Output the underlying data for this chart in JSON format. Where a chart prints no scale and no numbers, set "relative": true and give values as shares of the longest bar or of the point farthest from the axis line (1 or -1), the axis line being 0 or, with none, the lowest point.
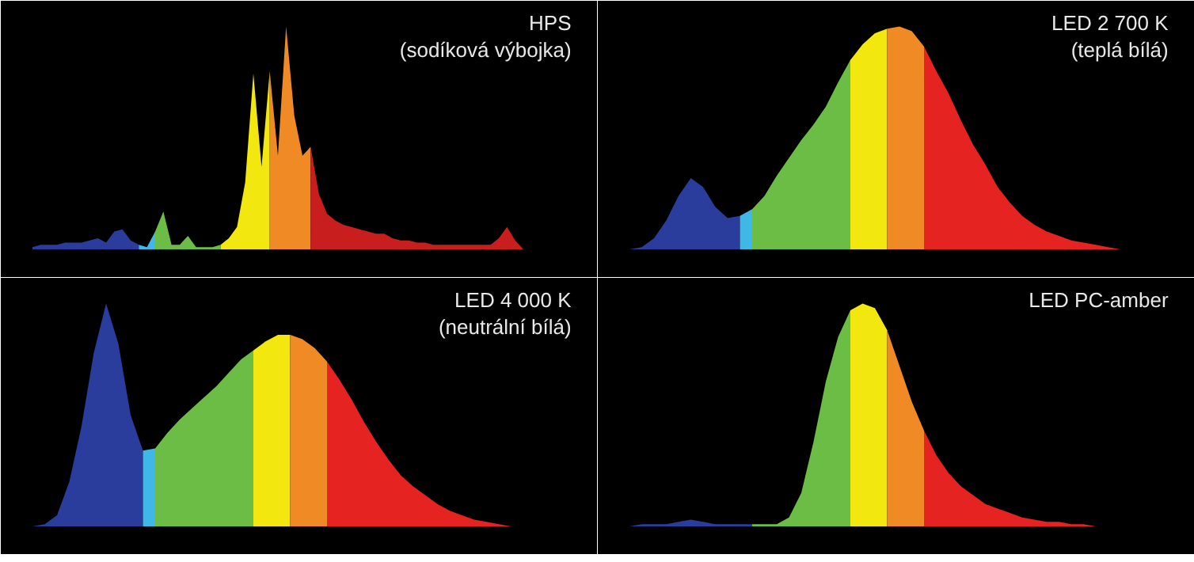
{
  "chart_data": [
    {
      "type": "area",
      "title": "HPS",
      "subtitle": "(sodíková výbojka)",
      "relative": true,
      "categories": [
        null,
        null,
        null,
        null,
        null,
        null,
        null,
        null,
        null,
        null,
        null,
        null,
        null,
        null,
        null,
        null,
        null,
        null,
        null,
        null,
        null,
        null,
        null,
        null,
        null,
        null,
        null,
        null,
        null,
        null,
        null,
        null,
        null,
        null,
        null,
        null,
        null,
        null,
        null,
        null,
        null,
        null,
        null,
        null,
        null,
        null,
        null,
        null,
        null,
        null,
        null,
        null,
        null,
        null,
        null,
        null,
        null,
        null,
        null,
        null,
        null
      ],
      "series": [
        {
          "color": "#2a3c9c",
          "values": [
            0.01,
            0.02,
            0.02,
            0.02,
            0.03,
            0.03,
            0.03,
            0.04,
            0.05,
            0.03,
            0.08,
            0.09,
            0.04,
            0.02,
            null,
            null,
            null,
            null,
            null,
            null,
            null,
            null,
            null,
            null,
            null,
            null,
            null,
            null,
            null,
            null,
            null,
            null,
            null,
            null,
            null,
            null,
            null,
            null,
            null,
            null,
            null,
            null,
            null,
            null,
            null,
            null,
            null,
            null,
            null,
            null,
            null,
            null,
            null,
            null,
            null,
            null,
            null,
            null,
            null,
            null,
            null
          ]
        },
        {
          "color": "#3fb8e8",
          "values": [
            null,
            null,
            null,
            null,
            null,
            null,
            null,
            null,
            null,
            null,
            null,
            null,
            null,
            0.02,
            0.01,
            0.08,
            null,
            null,
            null,
            null,
            null,
            null,
            null,
            null,
            null,
            null,
            null,
            null,
            null,
            null,
            null,
            null,
            null,
            null,
            null,
            null,
            null,
            null,
            null,
            null,
            null,
            null,
            null,
            null,
            null,
            null,
            null,
            null,
            null,
            null,
            null,
            null,
            null,
            null,
            null,
            null,
            null,
            null,
            null,
            null,
            null
          ]
        },
        {
          "color": "#6cbd45",
          "values": [
            null,
            null,
            null,
            null,
            null,
            null,
            null,
            null,
            null,
            null,
            null,
            null,
            null,
            null,
            null,
            0.08,
            0.17,
            0.02,
            0.02,
            0.06,
            0.01,
            0.01,
            0.01,
            0.02,
            null,
            null,
            null,
            null,
            null,
            null,
            null,
            null,
            null,
            null,
            null,
            null,
            null,
            null,
            null,
            null,
            null,
            null,
            null,
            null,
            null,
            null,
            null,
            null,
            null,
            null,
            null,
            null,
            null,
            null,
            null,
            null,
            null,
            null,
            null,
            null,
            null
          ]
        },
        {
          "color": "#f2e70f",
          "values": [
            null,
            null,
            null,
            null,
            null,
            null,
            null,
            null,
            null,
            null,
            null,
            null,
            null,
            null,
            null,
            null,
            null,
            null,
            null,
            null,
            null,
            null,
            null,
            0.02,
            0.05,
            0.1,
            0.3,
            0.79,
            0.37,
            0.8,
            null,
            null,
            null,
            null,
            null,
            null,
            null,
            null,
            null,
            null,
            null,
            null,
            null,
            null,
            null,
            null,
            null,
            null,
            null,
            null,
            null,
            null,
            null,
            null,
            null,
            null,
            null,
            null,
            null,
            null,
            null
          ]
        },
        {
          "color": "#f08a24",
          "values": [
            null,
            null,
            null,
            null,
            null,
            null,
            null,
            null,
            null,
            null,
            null,
            null,
            null,
            null,
            null,
            null,
            null,
            null,
            null,
            null,
            null,
            null,
            null,
            null,
            null,
            null,
            null,
            null,
            null,
            0.8,
            0.42,
            1.0,
            0.6,
            0.42,
            0.46,
            null,
            null,
            null,
            null,
            null,
            null,
            null,
            null,
            null,
            null,
            null,
            null,
            null,
            null,
            null,
            null,
            null,
            null,
            null,
            null,
            null,
            null,
            null,
            null,
            null,
            null
          ]
        },
        {
          "color": "#c81e1e",
          "values": [
            null,
            null,
            null,
            null,
            null,
            null,
            null,
            null,
            null,
            null,
            null,
            null,
            null,
            null,
            null,
            null,
            null,
            null,
            null,
            null,
            null,
            null,
            null,
            null,
            null,
            null,
            null,
            null,
            null,
            null,
            null,
            null,
            null,
            null,
            0.46,
            0.25,
            0.16,
            0.13,
            0.11,
            0.1,
            0.09,
            0.08,
            0.07,
            0.07,
            0.05,
            0.04,
            0.04,
            0.03,
            0.03,
            0.02,
            0.02,
            0.02,
            0.02,
            0.02,
            0.02,
            0.02,
            0.02,
            0.05,
            0.1,
            0.04,
            0
          ]
        }
      ]
    },
    {
      "type": "area",
      "title": "LED 2 700 K",
      "subtitle": "(teplá bílá)",
      "relative": true,
      "categories": [
        null,
        null,
        null,
        null,
        null,
        null,
        null,
        null,
        null,
        null,
        null,
        null,
        null,
        null,
        null,
        null,
        null,
        null,
        null,
        null,
        null,
        null,
        null,
        null,
        null,
        null,
        null,
        null,
        null,
        null,
        null,
        null,
        null,
        null,
        null,
        null,
        null,
        null,
        null,
        null,
        null
      ],
      "series": [
        {
          "color": "#2a3c9c",
          "values": [
            0,
            0.01,
            0.05,
            0.13,
            0.24,
            0.32,
            0.28,
            0.19,
            0.14,
            0.15,
            null,
            null,
            null,
            null,
            null,
            null,
            null,
            null,
            null,
            null,
            null,
            null,
            null,
            null,
            null,
            null,
            null,
            null,
            null,
            null,
            null,
            null,
            null,
            null,
            null,
            null,
            null,
            null,
            null,
            null,
            null
          ]
        },
        {
          "color": "#3fb8e8",
          "values": [
            null,
            null,
            null,
            null,
            null,
            null,
            null,
            null,
            null,
            0.15,
            0.18,
            null,
            null,
            null,
            null,
            null,
            null,
            null,
            null,
            null,
            null,
            null,
            null,
            null,
            null,
            null,
            null,
            null,
            null,
            null,
            null,
            null,
            null,
            null,
            null,
            null,
            null,
            null,
            null,
            null,
            null
          ]
        },
        {
          "color": "#6cbd45",
          "values": [
            null,
            null,
            null,
            null,
            null,
            null,
            null,
            null,
            null,
            null,
            0.18,
            0.24,
            0.33,
            0.41,
            0.49,
            0.56,
            0.64,
            0.75,
            0.85,
            null,
            null,
            null,
            null,
            null,
            null,
            null,
            null,
            null,
            null,
            null,
            null,
            null,
            null,
            null,
            null,
            null,
            null,
            null,
            null,
            null,
            null
          ]
        },
        {
          "color": "#f2e70f",
          "values": [
            null,
            null,
            null,
            null,
            null,
            null,
            null,
            null,
            null,
            null,
            null,
            null,
            null,
            null,
            null,
            null,
            null,
            null,
            0.85,
            0.92,
            0.97,
            0.99,
            null,
            null,
            null,
            null,
            null,
            null,
            null,
            null,
            null,
            null,
            null,
            null,
            null,
            null,
            null,
            null,
            null,
            null,
            null
          ]
        },
        {
          "color": "#f08a24",
          "values": [
            null,
            null,
            null,
            null,
            null,
            null,
            null,
            null,
            null,
            null,
            null,
            null,
            null,
            null,
            null,
            null,
            null,
            null,
            null,
            null,
            null,
            0.99,
            1.0,
            0.98,
            0.91,
            null,
            null,
            null,
            null,
            null,
            null,
            null,
            null,
            null,
            null,
            null,
            null,
            null,
            null,
            null,
            null
          ]
        },
        {
          "color": "#e52320",
          "values": [
            null,
            null,
            null,
            null,
            null,
            null,
            null,
            null,
            null,
            null,
            null,
            null,
            null,
            null,
            null,
            null,
            null,
            null,
            null,
            null,
            null,
            null,
            null,
            null,
            0.91,
            0.8,
            0.7,
            0.58,
            0.47,
            0.38,
            0.28,
            0.21,
            0.15,
            0.11,
            0.08,
            0.06,
            0.04,
            0.03,
            0.02,
            0.01,
            0
          ]
        }
      ]
    },
    {
      "type": "area",
      "title": "LED 4 000 K",
      "subtitle": "(neutrální bílá)",
      "relative": true,
      "categories": [
        null,
        null,
        null,
        null,
        null,
        null,
        null,
        null,
        null,
        null,
        null,
        null,
        null,
        null,
        null,
        null,
        null,
        null,
        null,
        null,
        null,
        null,
        null,
        null,
        null,
        null,
        null,
        null,
        null,
        null,
        null,
        null,
        null,
        null,
        null,
        null,
        null,
        null,
        null,
        null,
        null
      ],
      "series": [
        {
          "color": "#2a3c9c",
          "values": [
            0,
            0.01,
            0.05,
            0.2,
            0.45,
            0.78,
            1.0,
            0.82,
            0.5,
            0.34,
            null,
            null,
            null,
            null,
            null,
            null,
            null,
            null,
            null,
            null,
            null,
            null,
            null,
            null,
            null,
            null,
            null,
            null,
            null,
            null,
            null,
            null,
            null,
            null,
            null,
            null,
            null,
            null,
            null,
            null,
            null
          ]
        },
        {
          "color": "#3fb8e8",
          "values": [
            null,
            null,
            null,
            null,
            null,
            null,
            null,
            null,
            null,
            0.34,
            0.35,
            null,
            null,
            null,
            null,
            null,
            null,
            null,
            null,
            null,
            null,
            null,
            null,
            null,
            null,
            null,
            null,
            null,
            null,
            null,
            null,
            null,
            null,
            null,
            null,
            null,
            null,
            null,
            null,
            null,
            null
          ]
        },
        {
          "color": "#6cbd45",
          "values": [
            null,
            null,
            null,
            null,
            null,
            null,
            null,
            null,
            null,
            null,
            0.35,
            0.42,
            0.48,
            0.53,
            0.58,
            0.63,
            0.69,
            0.75,
            0.79,
            null,
            null,
            null,
            null,
            null,
            null,
            null,
            null,
            null,
            null,
            null,
            null,
            null,
            null,
            null,
            null,
            null,
            null,
            null,
            null,
            null,
            null
          ]
        },
        {
          "color": "#f2e70f",
          "values": [
            null,
            null,
            null,
            null,
            null,
            null,
            null,
            null,
            null,
            null,
            null,
            null,
            null,
            null,
            null,
            null,
            null,
            null,
            0.79,
            0.83,
            0.86,
            0.86,
            null,
            null,
            null,
            null,
            null,
            null,
            null,
            null,
            null,
            null,
            null,
            null,
            null,
            null,
            null,
            null,
            null,
            null,
            null
          ]
        },
        {
          "color": "#f08a24",
          "values": [
            null,
            null,
            null,
            null,
            null,
            null,
            null,
            null,
            null,
            null,
            null,
            null,
            null,
            null,
            null,
            null,
            null,
            null,
            null,
            null,
            null,
            0.86,
            0.84,
            0.8,
            0.74,
            null,
            null,
            null,
            null,
            null,
            null,
            null,
            null,
            null,
            null,
            null,
            null,
            null,
            null,
            null,
            null
          ]
        },
        {
          "color": "#e52320",
          "values": [
            null,
            null,
            null,
            null,
            null,
            null,
            null,
            null,
            null,
            null,
            null,
            null,
            null,
            null,
            null,
            null,
            null,
            null,
            null,
            null,
            null,
            null,
            null,
            null,
            0.74,
            0.66,
            0.57,
            0.47,
            0.38,
            0.3,
            0.23,
            0.18,
            0.14,
            0.1,
            0.07,
            0.05,
            0.03,
            0.02,
            0.01,
            0,
            0
          ]
        }
      ]
    },
    {
      "type": "area",
      "title": "LED PC-amber",
      "relative": true,
      "categories": [
        null,
        null,
        null,
        null,
        null,
        null,
        null,
        null,
        null,
        null,
        null,
        null,
        null,
        null,
        null,
        null,
        null,
        null,
        null,
        null,
        null,
        null,
        null,
        null,
        null,
        null,
        null,
        null,
        null,
        null,
        null,
        null,
        null,
        null,
        null,
        null,
        null,
        null,
        null,
        null,
        null
      ],
      "series": [
        {
          "color": "#2a3c9c",
          "values": [
            0,
            0.01,
            0.01,
            0.01,
            0.02,
            0.03,
            0.02,
            0.01,
            0.01,
            0.01,
            0.01,
            null,
            null,
            null,
            null,
            null,
            null,
            null,
            null,
            null,
            null,
            null,
            null,
            null,
            null,
            null,
            null,
            null,
            null,
            null,
            null,
            null,
            null,
            null,
            null,
            null,
            null,
            null,
            null,
            null,
            null
          ]
        },
        {
          "color": "#6cbd45",
          "values": [
            null,
            null,
            null,
            null,
            null,
            null,
            null,
            null,
            null,
            null,
            0.01,
            0.01,
            0.01,
            0.04,
            0.15,
            0.38,
            0.65,
            0.85,
            0.97,
            null,
            null,
            null,
            null,
            null,
            null,
            null,
            null,
            null,
            null,
            null,
            null,
            null,
            null,
            null,
            null,
            null,
            null,
            null,
            null,
            null,
            null
          ]
        },
        {
          "color": "#f2e70f",
          "values": [
            null,
            null,
            null,
            null,
            null,
            null,
            null,
            null,
            null,
            null,
            null,
            null,
            null,
            null,
            null,
            null,
            null,
            null,
            0.97,
            1.0,
            0.98,
            0.88,
            null,
            null,
            null,
            null,
            null,
            null,
            null,
            null,
            null,
            null,
            null,
            null,
            null,
            null,
            null,
            null,
            null,
            null,
            null
          ]
        },
        {
          "color": "#f08a24",
          "values": [
            null,
            null,
            null,
            null,
            null,
            null,
            null,
            null,
            null,
            null,
            null,
            null,
            null,
            null,
            null,
            null,
            null,
            null,
            null,
            null,
            null,
            0.88,
            0.72,
            0.56,
            0.43,
            null,
            null,
            null,
            null,
            null,
            null,
            null,
            null,
            null,
            null,
            null,
            null,
            null,
            null,
            null,
            null
          ]
        },
        {
          "color": "#e52320",
          "values": [
            null,
            null,
            null,
            null,
            null,
            null,
            null,
            null,
            null,
            null,
            null,
            null,
            null,
            null,
            null,
            null,
            null,
            null,
            null,
            null,
            null,
            null,
            null,
            null,
            0.43,
            0.32,
            0.24,
            0.18,
            0.14,
            0.1,
            0.08,
            0.06,
            0.04,
            0.03,
            0.02,
            0.02,
            0.01,
            0.01,
            0,
            0,
            0
          ]
        }
      ]
    }
  ]
}
